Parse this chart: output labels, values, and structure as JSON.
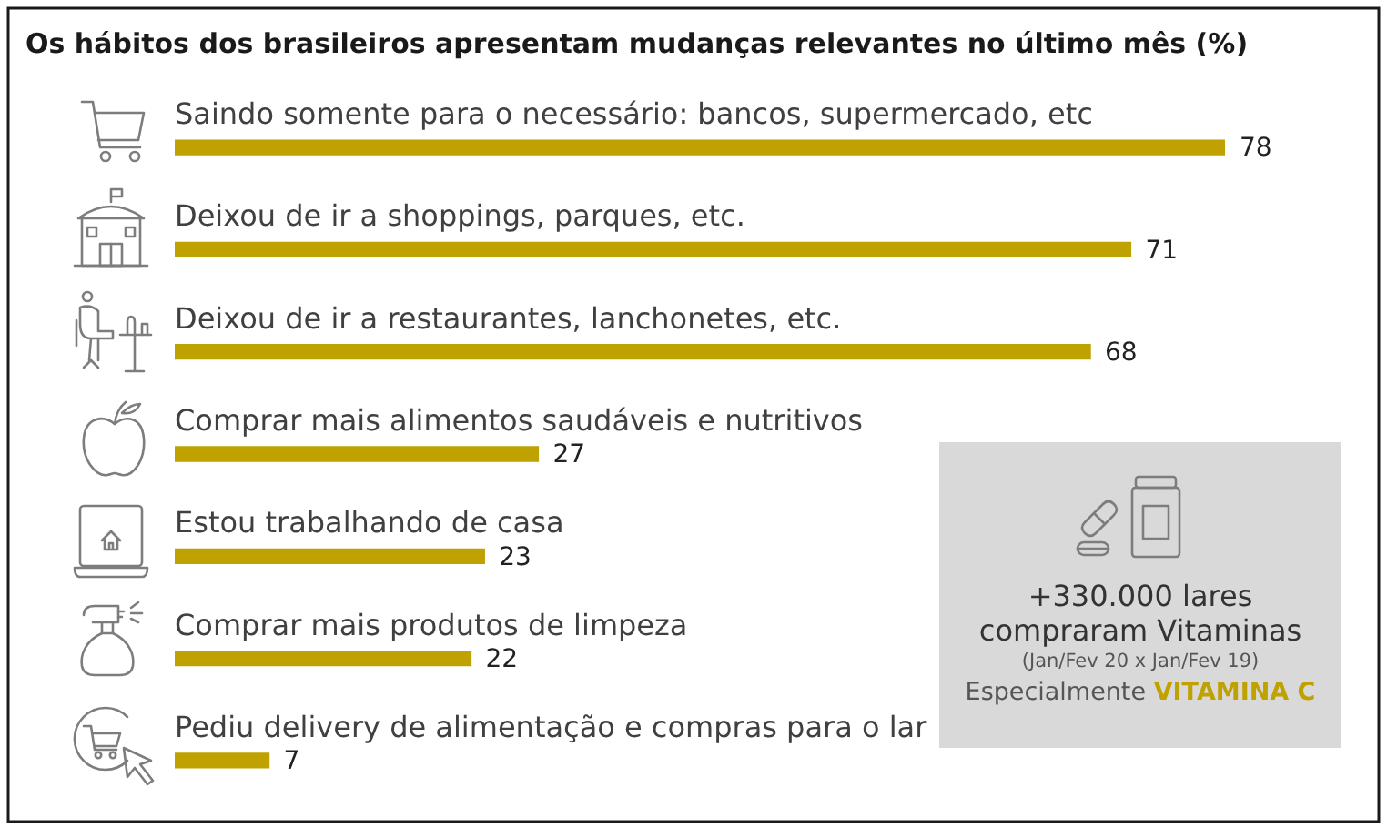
{
  "chart_data": {
    "type": "bar",
    "orientation": "horizontal",
    "title": "Os hábitos dos brasileiros apresentam mudanças relevantes no último mês (%)",
    "categories": [
      "Saindo somente para o necessário: bancos, supermercado, etc",
      "Deixou de ir a shoppings, parques, etc.",
      "Deixou de ir a restaurantes, lanchonetes, etc.",
      "Comprar mais alimentos saudáveis e nutritivos",
      "Estou trabalhando de casa",
      "Comprar mais produtos de limpeza",
      "Pediu delivery de alimentação e compras para o lar"
    ],
    "values": [
      78,
      71,
      68,
      27,
      23,
      22,
      7
    ],
    "color": "#bfa100",
    "data_labels": true,
    "annotations": [
      "+330.000 lares",
      "compraram Vitaminas",
      "(Jan/Fev 20 x Jan/Fev 19)",
      "Especialmente",
      "VITAMINA C"
    ]
  }
}
